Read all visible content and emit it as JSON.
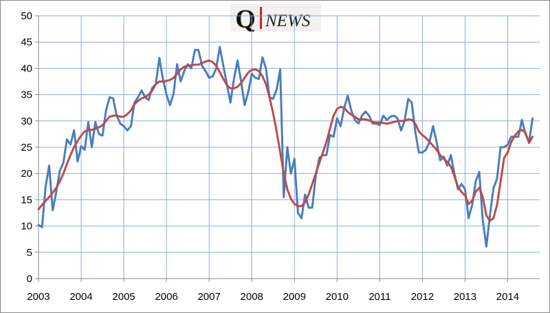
{
  "chart_data": {
    "type": "line",
    "annotations": [
      "Q",
      "NEWS"
    ],
    "x": [
      2003,
      2003.083,
      2003.167,
      2003.25,
      2003.333,
      2003.417,
      2003.5,
      2003.583,
      2003.667,
      2003.75,
      2003.833,
      2003.917,
      2004,
      2004.083,
      2004.167,
      2004.25,
      2004.333,
      2004.417,
      2004.5,
      2004.583,
      2004.667,
      2004.75,
      2004.833,
      2004.917,
      2005,
      2005.083,
      2005.167,
      2005.25,
      2005.333,
      2005.417,
      2005.5,
      2005.583,
      2005.667,
      2005.75,
      2005.833,
      2005.917,
      2006,
      2006.083,
      2006.167,
      2006.25,
      2006.333,
      2006.417,
      2006.5,
      2006.583,
      2006.667,
      2006.75,
      2006.833,
      2006.917,
      2007,
      2007.083,
      2007.167,
      2007.25,
      2007.333,
      2007.417,
      2007.5,
      2007.583,
      2007.667,
      2007.75,
      2007.833,
      2007.917,
      2008,
      2008.083,
      2008.167,
      2008.25,
      2008.333,
      2008.417,
      2008.5,
      2008.583,
      2008.667,
      2008.75,
      2008.833,
      2008.917,
      2009,
      2009.083,
      2009.167,
      2009.25,
      2009.333,
      2009.417,
      2009.5,
      2009.583,
      2009.667,
      2009.75,
      2009.833,
      2009.917,
      2010,
      2010.083,
      2010.167,
      2010.25,
      2010.333,
      2010.417,
      2010.5,
      2010.583,
      2010.667,
      2010.75,
      2010.833,
      2010.917,
      2011,
      2011.083,
      2011.167,
      2011.25,
      2011.333,
      2011.417,
      2011.5,
      2011.583,
      2011.667,
      2011.75,
      2011.833,
      2011.917,
      2012,
      2012.083,
      2012.167,
      2012.25,
      2012.333,
      2012.417,
      2012.5,
      2012.583,
      2012.667,
      2012.75,
      2012.833,
      2012.917,
      2013,
      2013.083,
      2013.167,
      2013.25,
      2013.333,
      2013.417,
      2013.5,
      2013.583,
      2013.667,
      2013.75,
      2013.833,
      2013.917,
      2014,
      2014.083,
      2014.167,
      2014.25,
      2014.333,
      2014.417,
      2014.5,
      2014.583
    ],
    "series": [
      {
        "color": "#4a7ebb",
        "values": [
          10.2,
          9.8,
          17.5,
          21.5,
          13,
          16.5,
          20.5,
          22,
          26.5,
          25.5,
          28.2,
          22.3,
          25.2,
          24.5,
          29.8,
          25,
          29.8,
          27.5,
          27.2,
          32,
          34.5,
          34.3,
          31,
          29.5,
          29,
          28.2,
          29,
          33.5,
          34.5,
          35.8,
          34.5,
          34,
          36.3,
          37,
          42,
          38,
          35,
          33,
          35.2,
          40.8,
          37.5,
          39.5,
          40.8,
          40,
          43.5,
          43.5,
          40.5,
          39.5,
          38.2,
          38.5,
          40,
          44.1,
          40.5,
          37,
          33.5,
          38,
          41.5,
          37.5,
          33,
          35.5,
          39,
          38.2,
          38,
          42.1,
          40,
          34.5,
          34.2,
          36,
          39.8,
          15.5,
          25,
          20,
          22.8,
          12.5,
          11.5,
          16,
          13.5,
          13.5,
          19.5,
          23,
          23.5,
          23.5,
          27.3,
          27,
          30.5,
          29,
          32.5,
          34.8,
          32,
          30.2,
          29.5,
          31,
          31.8,
          31,
          29.5,
          29.5,
          29.2,
          31,
          30.2,
          30.8,
          31,
          30.5,
          28.2,
          30,
          34.2,
          33.5,
          28,
          24,
          24,
          24.5,
          26,
          29,
          26,
          22.5,
          23.2,
          21.5,
          23.5,
          20,
          17,
          18,
          17,
          11.5,
          14,
          18.5,
          20.3,
          11,
          6.1,
          12,
          17.2,
          19,
          25,
          25,
          25.5,
          27,
          27,
          27,
          30.2,
          27.5,
          26,
          30.5
        ]
      },
      {
        "color": "#be4b48",
        "values": [
          13.2,
          14,
          14.8,
          15.5,
          16.3,
          17.3,
          18.5,
          20,
          21.8,
          23.5,
          25,
          26.2,
          27.2,
          28,
          28.3,
          28.3,
          28.5,
          28.8,
          29.2,
          30,
          30.8,
          31,
          31,
          30.8,
          30.8,
          31.3,
          32,
          33.2,
          33.8,
          34.3,
          34.5,
          35,
          35.8,
          37,
          37.5,
          37.5,
          37.6,
          37.8,
          38.2,
          39,
          39.8,
          40.3,
          40.5,
          40.6,
          40.7,
          40.7,
          41,
          41.3,
          41.5,
          41.2,
          40.5,
          39.3,
          38,
          36.8,
          36.2,
          36.2,
          36.5,
          37.2,
          38.2,
          39.2,
          39.7,
          39.8,
          39.5,
          38.5,
          37,
          34.5,
          31.5,
          28,
          24,
          20,
          17,
          15.2,
          14.2,
          13.8,
          13.8,
          14.5,
          16,
          18,
          20,
          22,
          24,
          26,
          28.5,
          31,
          32.3,
          32.7,
          32.5,
          31.7,
          31.2,
          30.8,
          30.3,
          30.3,
          30.3,
          30.1,
          29.8,
          29.7,
          29.7,
          29.6,
          29.5,
          29.6,
          29.8,
          30,
          30,
          30,
          30.3,
          30.2,
          29.5,
          28,
          27.3,
          26.8,
          26,
          25.3,
          24.5,
          23.5,
          22.8,
          22.2,
          21.3,
          19.5,
          17.5,
          16.5,
          15.8,
          14.2,
          14.8,
          16.5,
          17.3,
          15.5,
          12,
          11,
          11.5,
          14,
          18.5,
          23,
          24,
          26,
          27.2,
          28,
          28.3,
          27.8,
          25.8,
          27
        ]
      }
    ],
    "xlim": [
      2003,
      2014.75
    ],
    "ylim": [
      0,
      50
    ],
    "xticks": [
      2003,
      2004,
      2005,
      2006,
      2007,
      2008,
      2009,
      2010,
      2011,
      2012,
      2013,
      2014
    ],
    "yticks": [
      0,
      5,
      10,
      15,
      20,
      25,
      30,
      35,
      40,
      45,
      50
    ],
    "grid": true,
    "grid_color": "#8faadc"
  }
}
